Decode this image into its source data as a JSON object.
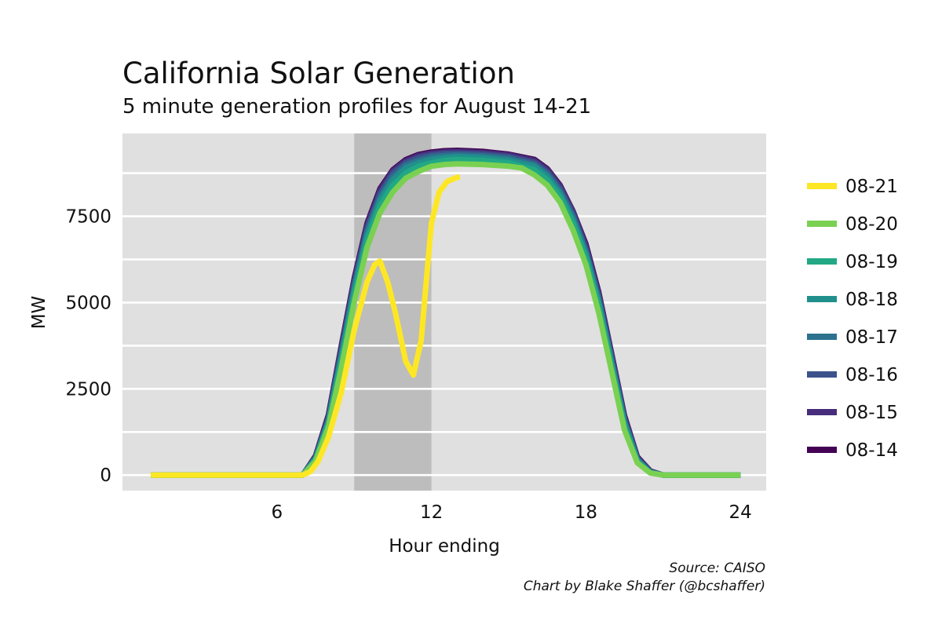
{
  "chart_data": {
    "type": "line",
    "title": "California Solar Generation",
    "subtitle": "5 minute generation profiles for August 14-21",
    "xlabel": "Hour ending",
    "ylabel": "MW",
    "xlim": [
      0,
      25
    ],
    "ylim": [
      -450,
      9900
    ],
    "x_ticks": [
      6,
      12,
      18,
      24
    ],
    "y_ticks": [
      0,
      2500,
      5000,
      7500
    ],
    "grid": true,
    "legend_position": "right",
    "highlight_band": {
      "x_start": 9,
      "x_end": 12,
      "color": "#bdbdbd"
    },
    "series": [
      {
        "name": "08-21",
        "color": "#fde725",
        "x": [
          1.1,
          7.0,
          7.3,
          7.6,
          8.0,
          8.5,
          9.0,
          9.5,
          9.8,
          10.0,
          10.3,
          10.6,
          11.0,
          11.3,
          11.6,
          11.8,
          12.0,
          12.3,
          12.6,
          12.9,
          13.1
        ],
        "y": [
          0,
          0,
          100,
          400,
          1100,
          2400,
          4200,
          5600,
          6100,
          6200,
          5600,
          4700,
          3300,
          2900,
          3900,
          5600,
          7300,
          8200,
          8500,
          8600,
          8650
        ]
      },
      {
        "name": "08-20",
        "color": "#7ad151",
        "x": [
          1.1,
          7.0,
          7.5,
          8.0,
          8.5,
          9.0,
          9.5,
          10.0,
          10.5,
          11.0,
          11.5,
          12.0,
          12.5,
          13.0,
          14.0,
          15.0,
          15.5,
          16.0,
          16.5,
          17.0,
          17.5,
          18.0,
          18.5,
          19.0,
          19.5,
          20.0,
          20.5,
          21.0,
          22.0,
          23.0,
          24.0
        ],
        "y": [
          0,
          0,
          400,
          1400,
          3100,
          5000,
          6600,
          7600,
          8200,
          8600,
          8800,
          8950,
          9000,
          9020,
          9000,
          8950,
          8900,
          8700,
          8400,
          7900,
          7100,
          6100,
          4700,
          3000,
          1300,
          350,
          60,
          0,
          0,
          0,
          0
        ]
      },
      {
        "name": "08-19",
        "color": "#22a884",
        "x": [
          1.1,
          7.0,
          7.5,
          8.0,
          8.5,
          9.0,
          9.5,
          10.0,
          10.5,
          11.0,
          11.5,
          12.0,
          12.5,
          13.0,
          14.0,
          15.0,
          16.0,
          16.5,
          17.0,
          17.5,
          18.0,
          18.5,
          19.0,
          19.5,
          20.0,
          20.5,
          21.0,
          24.0
        ],
        "y": [
          0,
          0,
          450,
          1500,
          3300,
          5200,
          6800,
          7800,
          8400,
          8750,
          8950,
          9050,
          9120,
          9150,
          9120,
          9050,
          8850,
          8550,
          8050,
          7300,
          6300,
          4900,
          3150,
          1400,
          380,
          70,
          0,
          0
        ]
      },
      {
        "name": "08-18",
        "color": "#21908d",
        "x": [
          1.1,
          7.0,
          7.5,
          8.0,
          8.5,
          9.0,
          9.5,
          10.0,
          10.5,
          11.0,
          11.5,
          12.0,
          12.5,
          13.0,
          14.0,
          15.0,
          16.0,
          16.5,
          17.0,
          17.5,
          18.0,
          18.5,
          19.0,
          19.5,
          20.0,
          20.5,
          21.0,
          24.0
        ],
        "y": [
          0,
          0,
          480,
          1550,
          3400,
          5350,
          6950,
          7950,
          8550,
          8900,
          9050,
          9150,
          9200,
          9230,
          9200,
          9120,
          8950,
          8650,
          8150,
          7400,
          6400,
          5000,
          3250,
          1500,
          420,
          80,
          0,
          0
        ]
      },
      {
        "name": "08-17",
        "color": "#2c728e",
        "x": [
          1.1,
          7.0,
          7.5,
          8.0,
          8.5,
          9.0,
          9.5,
          10.0,
          10.5,
          11.0,
          11.5,
          12.0,
          12.5,
          13.0,
          14.0,
          15.0,
          16.0,
          16.5,
          17.0,
          17.5,
          18.0,
          18.5,
          19.0,
          19.5,
          20.0,
          20.5,
          21.0,
          24.0
        ],
        "y": [
          0,
          0,
          500,
          1600,
          3500,
          5450,
          7050,
          8050,
          8650,
          8980,
          9120,
          9220,
          9260,
          9280,
          9250,
          9180,
          9000,
          8720,
          8220,
          7480,
          6480,
          5080,
          3320,
          1560,
          450,
          90,
          0,
          0
        ]
      },
      {
        "name": "08-16",
        "color": "#3b528b",
        "x": [
          1.1,
          7.0,
          7.5,
          8.0,
          8.5,
          9.0,
          9.5,
          10.0,
          10.5,
          11.0,
          11.5,
          12.0,
          12.5,
          13.0,
          14.0,
          15.0,
          16.0,
          16.5,
          17.0,
          17.5,
          18.0,
          18.5,
          19.0,
          19.5,
          20.0,
          20.5,
          21.0,
          24.0
        ],
        "y": [
          0,
          0,
          520,
          1650,
          3600,
          5550,
          7150,
          8150,
          8750,
          9050,
          9200,
          9280,
          9320,
          9330,
          9300,
          9230,
          9060,
          8790,
          8300,
          7560,
          6560,
          5160,
          3400,
          1620,
          480,
          100,
          0,
          0
        ]
      },
      {
        "name": "08-15",
        "color": "#472d7b",
        "x": [
          1.1,
          7.0,
          7.5,
          8.0,
          8.5,
          9.0,
          9.5,
          10.0,
          10.5,
          11.0,
          11.5,
          12.0,
          12.5,
          13.0,
          14.0,
          15.0,
          16.0,
          16.5,
          17.0,
          17.5,
          18.0,
          18.5,
          19.0,
          19.5,
          20.0,
          20.5,
          21.0,
          24.0
        ],
        "y": [
          0,
          0,
          540,
          1700,
          3700,
          5650,
          7250,
          8250,
          8820,
          9110,
          9260,
          9330,
          9370,
          9380,
          9350,
          9280,
          9120,
          8860,
          8380,
          7650,
          6650,
          5250,
          3480,
          1680,
          510,
          110,
          0,
          0
        ]
      },
      {
        "name": "08-14",
        "color": "#440154",
        "x": [
          1.1,
          7.0,
          7.5,
          8.0,
          8.5,
          9.0,
          9.5,
          10.0,
          10.5,
          11.0,
          11.5,
          12.0,
          12.5,
          13.0,
          14.0,
          15.0,
          16.0,
          16.5,
          17.0,
          17.5,
          18.0,
          18.5,
          19.0,
          19.5,
          20.0,
          20.5,
          21.0,
          24.0
        ],
        "y": [
          0,
          0,
          560,
          1750,
          3750,
          5700,
          7300,
          8300,
          8850,
          9140,
          9290,
          9360,
          9400,
          9410,
          9380,
          9300,
          9150,
          8880,
          8400,
          7650,
          6700,
          5300,
          3520,
          1720,
          530,
          120,
          0,
          0
        ]
      }
    ]
  },
  "caption": {
    "source": "Source: CAISO",
    "credit": "Chart by Blake Shaffer (@bcshaffer)"
  }
}
